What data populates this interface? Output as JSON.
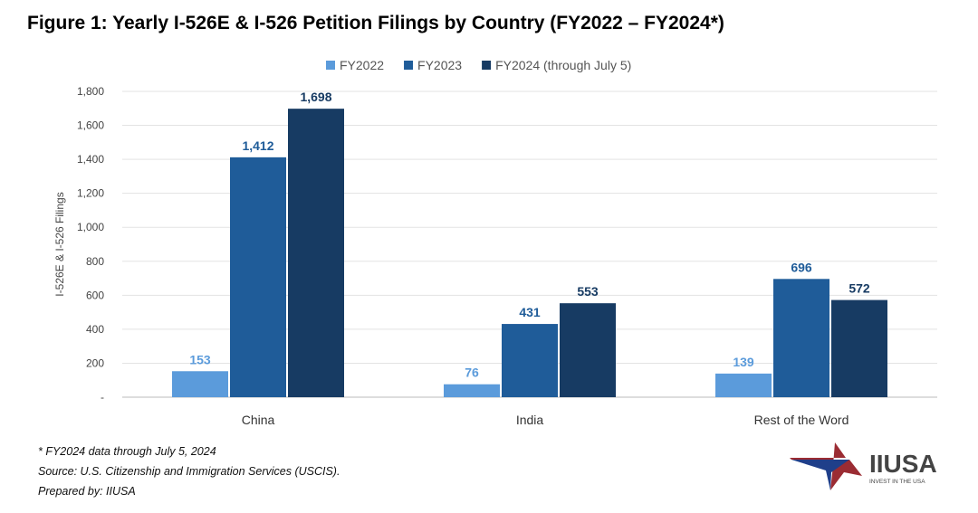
{
  "title": "Figure 1: Yearly I-526E & I-526 Petition Filings by Country (FY2022 – FY2024*)",
  "chart_data": {
    "type": "bar",
    "categories": [
      "China",
      "India",
      "Rest of the Word"
    ],
    "series": [
      {
        "name": "FY2022",
        "values": [
          153,
          76,
          139
        ],
        "color": "#5B9BDB"
      },
      {
        "name": "FY2023",
        "values": [
          1412,
          431,
          696
        ],
        "color": "#1F5C99"
      },
      {
        "name": "FY2024 (through July 5)",
        "values": [
          1698,
          553,
          572
        ],
        "color": "#173B63"
      }
    ],
    "ylabel": "I-526E & I-526 Filings",
    "ylim": [
      0,
      1800
    ],
    "yticks": [
      0,
      200,
      400,
      600,
      800,
      1000,
      1200,
      1400,
      1600,
      1800
    ],
    "ytick_labels": [
      "-",
      "200",
      "400",
      "600",
      "800",
      "1,000",
      "1,200",
      "1,400",
      "1,600",
      "1,800"
    ],
    "grid": true,
    "legend": "top-center",
    "data_labels": true
  },
  "footnotes": [
    "* FY2024 data through July 5, 2024",
    "Source: U.S. Citizenship and Immigration Services (USCIS).",
    "Prepared by: IIUSA"
  ],
  "logo": {
    "name": "IIUSA",
    "tagline": "INVEST IN THE USA"
  }
}
